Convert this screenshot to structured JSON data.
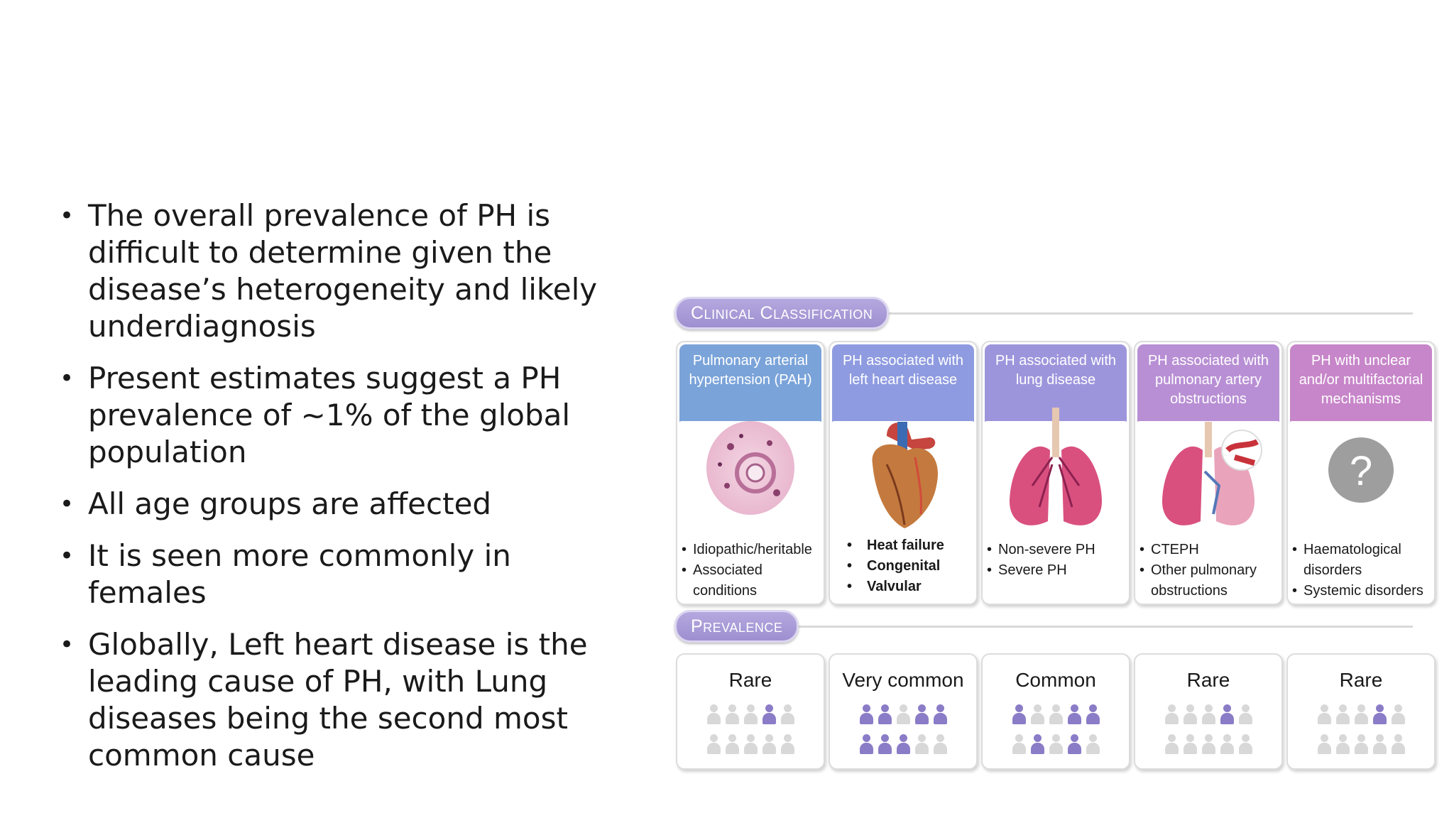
{
  "bullets": [
    "The overall prevalence of PH is difficult to determine given the disease’s heterogeneity and likely underdiagnosis",
    "Present estimates suggest a PH prevalence of ~1% of the global population",
    "All age groups are affected",
    "It is seen more commonly in females",
    "Globally, Left heart disease is the leading cause of PH, with Lung diseases being the second most common cause"
  ],
  "figure": {
    "classification_title": "Clinical Classification",
    "prevalence_title": "Prevalence",
    "groups": [
      {
        "title": "Pulmonary arterial hypertension (PAH)",
        "color": "#7aa3d9",
        "illustration": "histology-slide",
        "items": [
          "Idiopathic/heritable",
          "Associated conditions"
        ],
        "prevalence": "Rare",
        "affected_of_10": 1
      },
      {
        "title": "PH associated with left heart disease",
        "color": "#8f9be0",
        "illustration": "heart",
        "items": [
          "Heat failure",
          "Congenital",
          "Valvular"
        ],
        "prevalence": "Very common",
        "affected_of_10": 7
      },
      {
        "title": "PH associated with lung disease",
        "color": "#9d95dc",
        "illustration": "lungs",
        "items": [
          "Non-severe PH",
          "Severe PH"
        ],
        "prevalence": "Common",
        "affected_of_10": 5
      },
      {
        "title": "PH associated with pulmonary artery obstructions",
        "color": "#b88fd4",
        "illustration": "lungs-with-clot",
        "items": [
          "CTEPH",
          "Other pulmonary obstructions"
        ],
        "prevalence": "Rare",
        "affected_of_10": 1
      },
      {
        "title": "PH with unclear and/or multifactorial mechanisms",
        "color": "#c786c9",
        "illustration": "question-mark",
        "question_glyph": "?",
        "items": [
          "Haematological disorders",
          "Systemic disorders"
        ],
        "prevalence": "Rare",
        "affected_of_10": 1
      }
    ]
  }
}
